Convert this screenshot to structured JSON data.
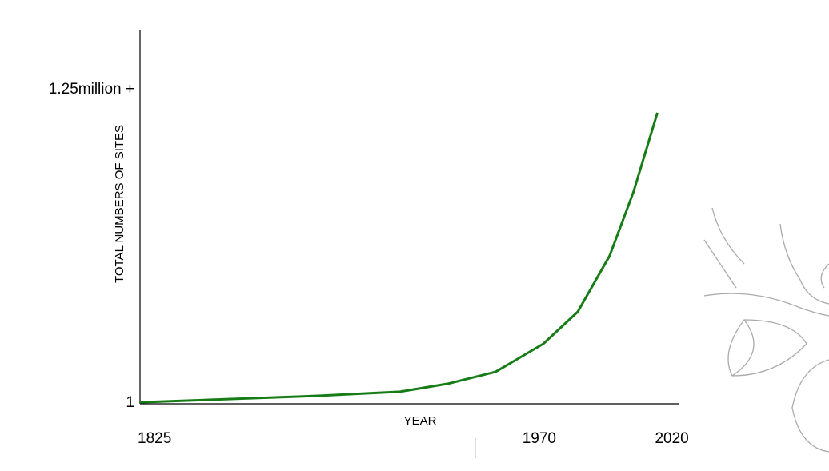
{
  "chart_data": {
    "type": "line",
    "x_label": "YEAR",
    "y_label": "TOTAL NUMBERS OF SITES",
    "x": [
      1825,
      1893,
      1923,
      1941,
      1959,
      1977,
      1990,
      2002,
      2011,
      2020
    ],
    "series": [
      {
        "color": "#167d16",
        "values": [
          3000,
          29000,
          45000,
          77000,
          124000,
          236000,
          364000,
          587000,
          842000,
          1158000
        ]
      }
    ],
    "xlim": [
      1825,
      2028
    ],
    "xticks": [
      1825,
      1970,
      2020
    ],
    "ylim": [
      1,
      1486000
    ],
    "yticks": [
      1,
      {
        "value": 1250000,
        "label": "1.25million +"
      }
    ]
  }
}
